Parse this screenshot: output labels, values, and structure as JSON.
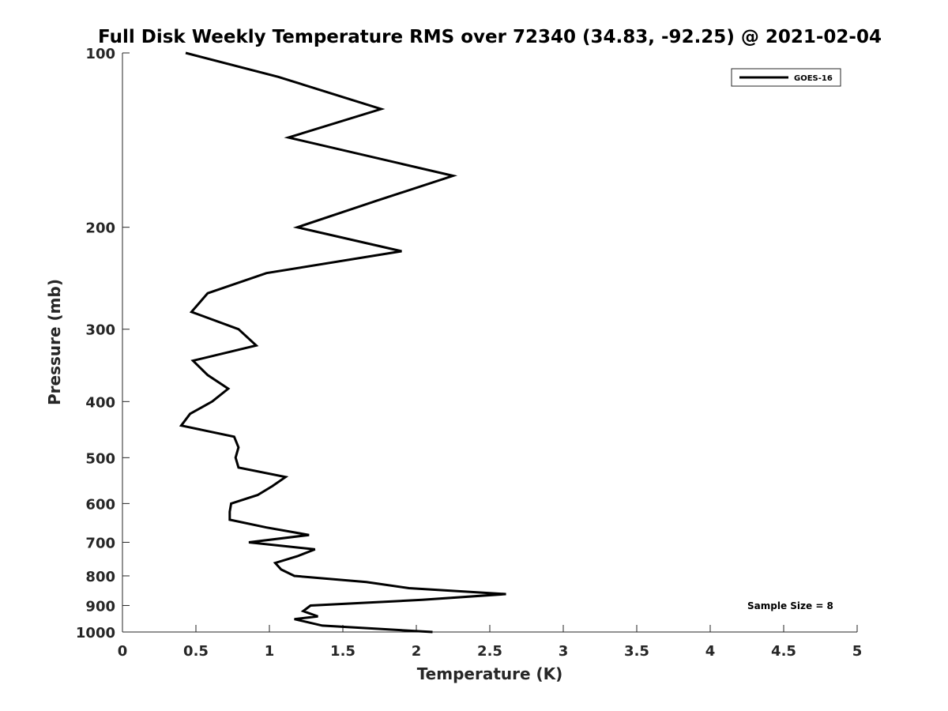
{
  "chart_data": {
    "type": "line",
    "title": "Full Disk Weekly Temperature RMS over 72340 (34.83, -92.25) @ 2021-02-04",
    "xlabel": "Temperature (K)",
    "ylabel": "Pressure (mb)",
    "xlim": [
      0,
      5
    ],
    "ylim": [
      100,
      1000
    ],
    "y_scale": "log",
    "y_reversed": true,
    "x_ticks": [
      "0",
      "0.5",
      "1",
      "1.5",
      "2",
      "2.5",
      "3",
      "3.5",
      "4",
      "4.5",
      "5"
    ],
    "y_ticks": [
      "100",
      "200",
      "300",
      "400",
      "500",
      "600",
      "700",
      "800",
      "900",
      "1000"
    ],
    "grid": false,
    "legend_position": "top-right",
    "annotation": "Sample Size = 8",
    "series": [
      {
        "name": "GOES-16",
        "color": "#000000",
        "points": [
          [
            0.43,
            100
          ],
          [
            1.06,
            110
          ],
          [
            1.76,
            125
          ],
          [
            1.13,
            140
          ],
          [
            2.25,
            163
          ],
          [
            1.73,
            180
          ],
          [
            1.19,
            200
          ],
          [
            1.9,
            220
          ],
          [
            0.98,
            240
          ],
          [
            0.58,
            260
          ],
          [
            0.47,
            280
          ],
          [
            0.79,
            300
          ],
          [
            0.91,
            320
          ],
          [
            0.48,
            340
          ],
          [
            0.58,
            360
          ],
          [
            0.72,
            380
          ],
          [
            0.61,
            400
          ],
          [
            0.46,
            420
          ],
          [
            0.4,
            440
          ],
          [
            0.76,
            460
          ],
          [
            0.79,
            480
          ],
          [
            0.77,
            500
          ],
          [
            0.79,
            520
          ],
          [
            1.11,
            540
          ],
          [
            1.02,
            560
          ],
          [
            0.92,
            580
          ],
          [
            0.74,
            600
          ],
          [
            0.73,
            620
          ],
          [
            0.73,
            640
          ],
          [
            0.98,
            660
          ],
          [
            1.27,
            680
          ],
          [
            0.86,
            700
          ],
          [
            1.31,
            720
          ],
          [
            1.19,
            740
          ],
          [
            1.04,
            760
          ],
          [
            1.08,
            780
          ],
          [
            1.17,
            800
          ],
          [
            1.66,
            820
          ],
          [
            1.95,
            840
          ],
          [
            2.61,
            860
          ],
          [
            2.04,
            880
          ],
          [
            1.28,
            900
          ],
          [
            1.23,
            920
          ],
          [
            1.33,
            940
          ],
          [
            1.17,
            950
          ],
          [
            1.36,
            975
          ],
          [
            2.11,
            1000
          ]
        ]
      }
    ]
  }
}
